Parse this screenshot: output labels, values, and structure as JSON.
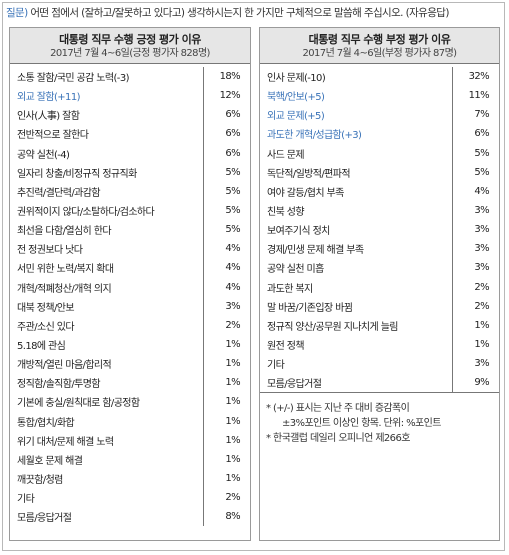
{
  "question": {
    "tag": "질문)",
    "text": " 어떤 점에서 (잘하고/잘못하고 있다고) 생각하시는지 한 가지만 구체적으로 말씀해 주십시오. (자유응답)"
  },
  "positive": {
    "title": "대통령 직무 수행 긍정 평가 이유",
    "subtitle": "2017년 7월 4~6일(긍정 평가자 828명)",
    "rows": [
      {
        "label": "소통 잘함/국민 공감 노력(-3)",
        "value": "18%",
        "highlight": false
      },
      {
        "label": "외교 잘함(+11)",
        "value": "12%",
        "highlight": true
      },
      {
        "label": "인사(人事) 잘함",
        "value": "6%",
        "highlight": false
      },
      {
        "label": "전반적으로 잘한다",
        "value": "6%",
        "highlight": false
      },
      {
        "label": "공약 실천(-4)",
        "value": "6%",
        "highlight": false
      },
      {
        "label": "일자리 창출/비정규직 정규직화",
        "value": "5%",
        "highlight": false
      },
      {
        "label": "추진력/결단력/과감함",
        "value": "5%",
        "highlight": false
      },
      {
        "label": "권위적이지 않다/소탈하다/검소하다",
        "value": "5%",
        "highlight": false
      },
      {
        "label": "최선을 다함/열심히 한다",
        "value": "5%",
        "highlight": false
      },
      {
        "label": "전 정권보다 낫다",
        "value": "4%",
        "highlight": false
      },
      {
        "label": "서민 위한 노력/복지 확대",
        "value": "4%",
        "highlight": false
      },
      {
        "label": "개혁/적폐청산/개혁 의지",
        "value": "4%",
        "highlight": false
      },
      {
        "label": "대북 정책/안보",
        "value": "3%",
        "highlight": false
      },
      {
        "label": "주관/소신 있다",
        "value": "2%",
        "highlight": false
      },
      {
        "label": "5.18에 관심",
        "value": "1%",
        "highlight": false
      },
      {
        "label": "개방적/열린 마음/합리적",
        "value": "1%",
        "highlight": false
      },
      {
        "label": "정직함/솔직함/투명함",
        "value": "1%",
        "highlight": false
      },
      {
        "label": "기본에 충실/원칙대로 함/공정함",
        "value": "1%",
        "highlight": false
      },
      {
        "label": "통합/협치/화합",
        "value": "1%",
        "highlight": false
      },
      {
        "label": "위기 대처/문제 해결 노력",
        "value": "1%",
        "highlight": false
      },
      {
        "label": "세월호 문제 해결",
        "value": "1%",
        "highlight": false
      },
      {
        "label": "깨끗함/청렴",
        "value": "1%",
        "highlight": false
      },
      {
        "label": "기타",
        "value": "2%",
        "highlight": false
      },
      {
        "label": "모름/응답거절",
        "value": "8%",
        "highlight": false
      }
    ]
  },
  "negative": {
    "title": "대통령 직무 수행 부정 평가 이유",
    "subtitle": "2017년 7월 4~6일(부정 평가자 87명)",
    "rows": [
      {
        "label": "인사 문제(-10)",
        "value": "32%",
        "highlight": false
      },
      {
        "label": "북핵/안보(+5)",
        "value": "11%",
        "highlight": true
      },
      {
        "label": "외교 문제(+5)",
        "value": "7%",
        "highlight": true
      },
      {
        "label": "과도한 개혁/성급함(+3)",
        "value": "6%",
        "highlight": true
      },
      {
        "label": "사드 문제",
        "value": "5%",
        "highlight": false
      },
      {
        "label": "독단적/일방적/편파적",
        "value": "5%",
        "highlight": false
      },
      {
        "label": "여야 갈등/협치 부족",
        "value": "4%",
        "highlight": false
      },
      {
        "label": "친북 성향",
        "value": "3%",
        "highlight": false
      },
      {
        "label": "보여주기식 정치",
        "value": "3%",
        "highlight": false
      },
      {
        "label": "경제/민생 문제 해결 부족",
        "value": "3%",
        "highlight": false
      },
      {
        "label": "공약 실천 미흡",
        "value": "3%",
        "highlight": false
      },
      {
        "label": "과도한 복지",
        "value": "2%",
        "highlight": false
      },
      {
        "label": "말 바꿈/기존입장 바뀜",
        "value": "2%",
        "highlight": false
      },
      {
        "label": "정규직 양산/공무원 지나치게 늘림",
        "value": "1%",
        "highlight": false
      },
      {
        "label": "원전 정책",
        "value": "1%",
        "highlight": false
      },
      {
        "label": "기타",
        "value": "3%",
        "highlight": false
      },
      {
        "label": "모름/응답거절",
        "value": "9%",
        "highlight": false
      }
    ]
  },
  "notes": {
    "line1": "* (+/-) 표시는 지난 주 대비 증감폭이",
    "line2": "±3%포인트 이상인 항목. 단위: %포인트",
    "line3": "* 한국갤럽 데일리 오피니언 제266호"
  }
}
